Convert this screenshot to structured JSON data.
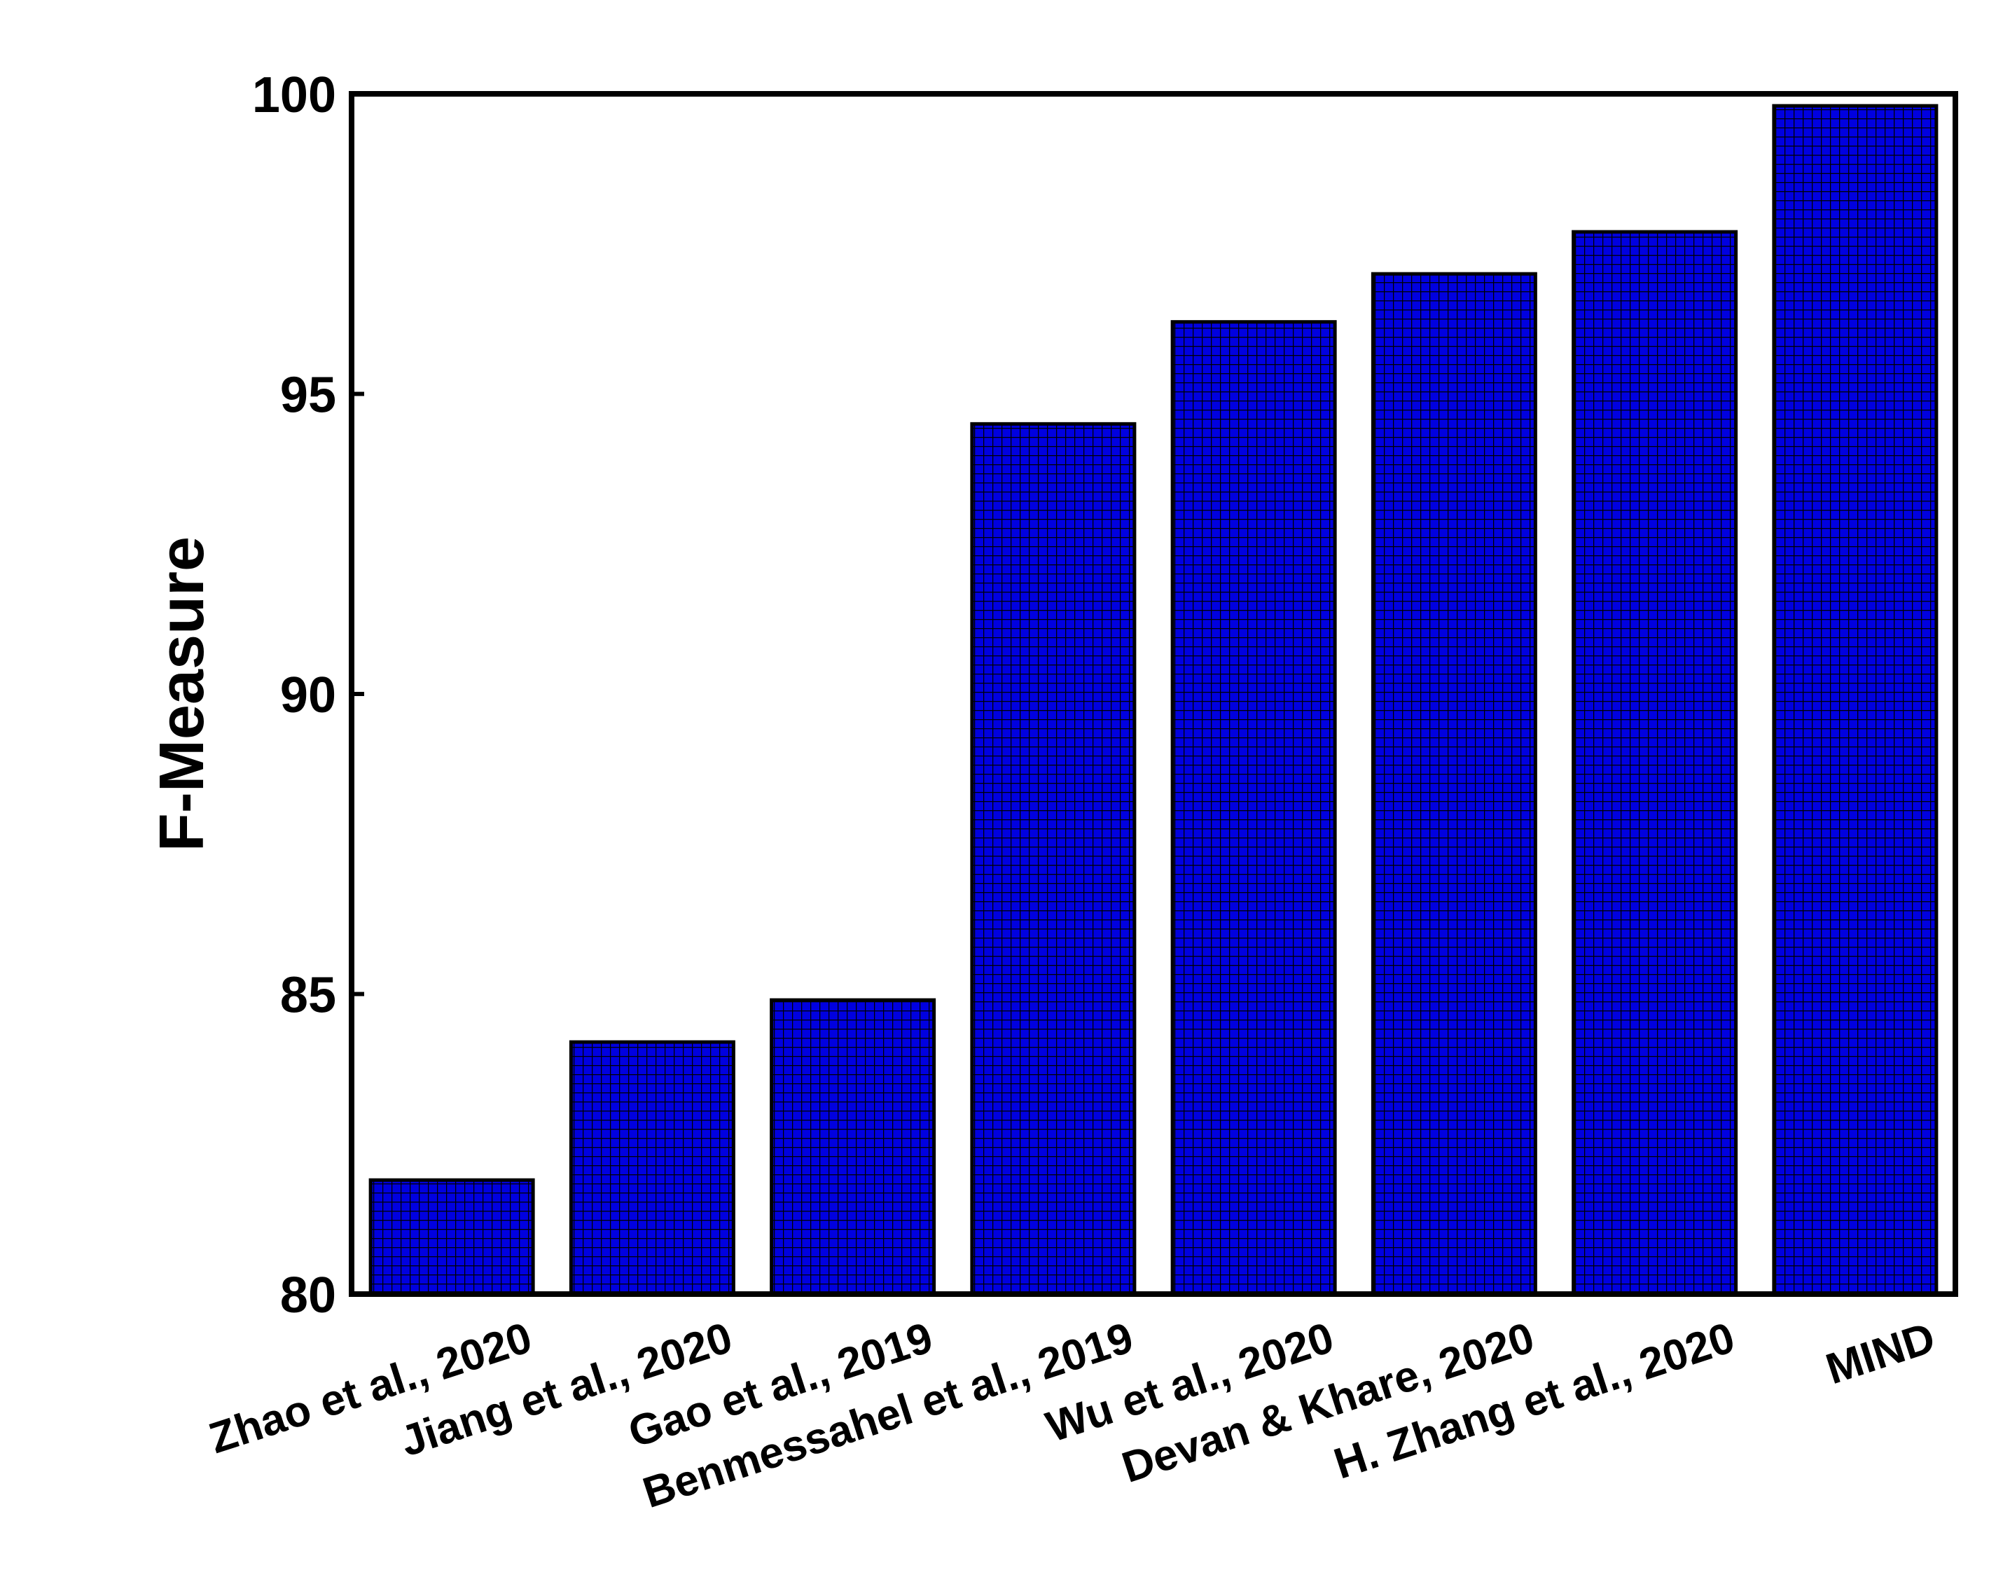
{
  "chart_data": {
    "type": "bar",
    "ylabel": "F-Measure",
    "xlabel": "",
    "ylim": [
      80,
      100
    ],
    "yticks": [
      80,
      85,
      90,
      95,
      100
    ],
    "categories": [
      "Zhao et al., 2020",
      "Jiang et al., 2020",
      "Gao et al., 2019",
      "Benmessahel et al., 2019",
      "Wu et al., 2020",
      "Devan & Khare, 2020",
      "H. Zhang et al., 2020",
      "MIND"
    ],
    "values": [
      81.9,
      84.2,
      84.9,
      94.5,
      96.2,
      97.0,
      97.7,
      99.8
    ],
    "bar_color": "#0000e0",
    "bar_pattern": "grid",
    "grid": false,
    "legend": "none"
  }
}
